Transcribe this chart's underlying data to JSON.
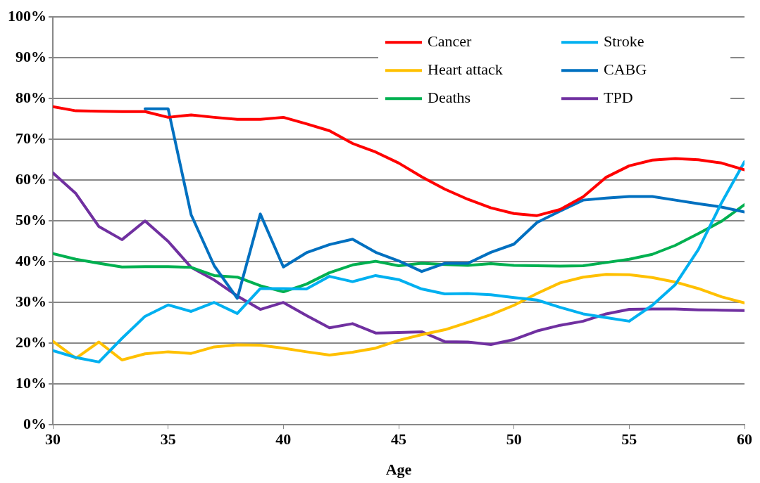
{
  "chart_data": {
    "type": "line",
    "xlabel": "Age",
    "x": [
      30,
      31,
      32,
      33,
      34,
      35,
      36,
      37,
      38,
      39,
      40,
      41,
      42,
      43,
      44,
      45,
      46,
      47,
      48,
      49,
      50,
      51,
      52,
      53,
      54,
      55,
      56,
      57,
      58,
      59,
      60
    ],
    "xlim": [
      30,
      60
    ],
    "xticks": [
      30,
      35,
      40,
      45,
      50,
      55,
      60
    ],
    "ylim": [
      0,
      100
    ],
    "yticks": [
      {
        "value": 0,
        "label": "0%"
      },
      {
        "value": 10,
        "label": "10%"
      },
      {
        "value": 20,
        "label": "20%"
      },
      {
        "value": 30,
        "label": "30%"
      },
      {
        "value": 40,
        "label": "40%"
      },
      {
        "value": 50,
        "label": "50%"
      },
      {
        "value": 60,
        "label": "60%"
      },
      {
        "value": 70,
        "label": "70%"
      },
      {
        "value": 80,
        "label": "80%"
      },
      {
        "value": 90,
        "label": "90%"
      },
      {
        "value": 100,
        "label": "100%"
      }
    ],
    "grid": "y",
    "legend": "top right",
    "line_style": "solid",
    "series": [
      {
        "name": "Cancer",
        "color": "#ff0000",
        "values": [
          78,
          77,
          76.9,
          76.8,
          76.8,
          75.4,
          76,
          75.4,
          74.9,
          74.9,
          75.4,
          73.8,
          72.1,
          69,
          66.9,
          64.2,
          60.8,
          57.8,
          55.3,
          53.2,
          51.8,
          51.3,
          52.8,
          55.9,
          60.7,
          63.5,
          64.9,
          65.3,
          65,
          64.2,
          62.5
        ]
      },
      {
        "name": "Stroke",
        "color": "#00b0f0",
        "values": [
          18.2,
          16.5,
          15.4,
          21.2,
          26.6,
          29.4,
          27.8,
          30,
          27.3,
          33.4,
          33.4,
          33.3,
          36.4,
          35.1,
          36.6,
          35.6,
          33.3,
          32.1,
          32.2,
          31.9,
          31.2,
          30.6,
          28.8,
          27.2,
          26.3,
          25.4,
          29.3,
          34.4,
          43,
          54.4,
          64.5
        ]
      },
      {
        "name": "Heart attack",
        "color": "#ffc000",
        "values": [
          20.5,
          16.3,
          20.3,
          15.9,
          17.4,
          17.9,
          17.5,
          19.1,
          19.6,
          19.5,
          18.8,
          17.9,
          17.1,
          17.8,
          18.8,
          20.7,
          22.1,
          23.3,
          25.1,
          27,
          29.3,
          32.2,
          34.8,
          36.2,
          36.9,
          36.8,
          36.1,
          35,
          33.4,
          31.4,
          29.9
        ]
      },
      {
        "name": "CABG",
        "color": "#0070c0",
        "values": [
          null,
          null,
          null,
          null,
          77.5,
          77.5,
          51.5,
          39,
          31,
          51.7,
          38.7,
          42.2,
          44.2,
          45.5,
          42.3,
          40.2,
          37.6,
          39.6,
          39.6,
          42.3,
          44.3,
          49.6,
          52.4,
          55.1,
          55.6,
          56,
          56,
          55.1,
          54.2,
          53.4,
          52.2
        ]
      },
      {
        "name": "Deaths",
        "color": "#00b050",
        "values": [
          42,
          40.6,
          39.6,
          38.7,
          38.8,
          38.8,
          38.6,
          36.6,
          36.2,
          34.1,
          32.6,
          34.5,
          37.3,
          39.2,
          40.1,
          39,
          39.6,
          39.3,
          39.1,
          39.5,
          39.1,
          39,
          38.9,
          39,
          39.8,
          40.6,
          41.8,
          44,
          46.9,
          49.9,
          54
        ]
      },
      {
        "name": "TPD",
        "color": "#7030a0",
        "values": [
          61.8,
          56.7,
          48.6,
          45.4,
          50,
          45,
          38.6,
          35.5,
          31.6,
          28.3,
          30,
          26.8,
          23.8,
          24.8,
          22.5,
          22.6,
          22.8,
          20.4,
          20.3,
          19.7,
          20.9,
          23,
          24.4,
          25.4,
          27.2,
          28.3,
          28.4,
          28.4,
          28.2,
          28.1,
          28
        ]
      }
    ]
  }
}
